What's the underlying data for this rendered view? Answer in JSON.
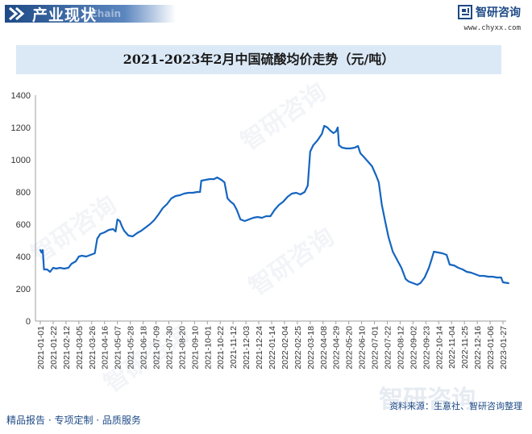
{
  "header": {
    "title": "产业现状",
    "subtitle": "Chain"
  },
  "brand": {
    "name": "智研咨询",
    "url": "www.chyxx.com",
    "logo_icon": "zhiyan-logo-icon"
  },
  "watermark": {
    "text": "智研咨询"
  },
  "footer": {
    "left": "精品报告 · 专项定制 · 品质服务",
    "source": "资料来源：生意社、智研咨询整理"
  },
  "colors": {
    "brand_blue": "#1e4a86",
    "line": "#1565c0",
    "title_bg": "#dbe9f7"
  },
  "chart_data": {
    "type": "line",
    "title": "2021-2023年2月中国硫酸均价走势（元/吨）",
    "xlabel": "",
    "ylabel": "",
    "ylim": [
      0,
      1400
    ],
    "yticks": [
      0,
      200,
      400,
      600,
      800,
      1000,
      1200,
      1400
    ],
    "grid": false,
    "legend": "none",
    "x_ticks": [
      "2021-01-01",
      "2021-01-22",
      "2021-02-12",
      "2021-03-05",
      "2021-03-26",
      "2021-04-16",
      "2021-05-07",
      "2021-05-28",
      "2021-06-18",
      "2021-07-09",
      "2021-07-30",
      "2021-08-20",
      "2021-09-10",
      "2021-10-01",
      "2021-10-22",
      "2021-11-12",
      "2021-12-03",
      "2021-12-24",
      "2022-01-14",
      "2022-02-04",
      "2022-02-25",
      "2022-03-18",
      "2022-04-08",
      "2022-04-29",
      "2022-05-20",
      "2022-06-10",
      "2022-07-01",
      "2022-07-22",
      "2022-08-12",
      "2022-09-02",
      "2022-09-23",
      "2022-10-14",
      "2022-11-04",
      "2022-11-25",
      "2022-12-16",
      "2023-01-06",
      "2023-01-27"
    ],
    "series": [
      {
        "points": [
          [
            "2021-01-01",
            440
          ],
          [
            "2021-01-03",
            425
          ],
          [
            "2021-01-05",
            440
          ],
          [
            "2021-01-07",
            320
          ],
          [
            "2021-01-12",
            320
          ],
          [
            "2021-01-17",
            305
          ],
          [
            "2021-01-22",
            330
          ],
          [
            "2021-01-27",
            325
          ],
          [
            "2021-02-02",
            330
          ],
          [
            "2021-02-09",
            325
          ],
          [
            "2021-02-16",
            330
          ],
          [
            "2021-02-21",
            355
          ],
          [
            "2021-02-28",
            370
          ],
          [
            "2021-03-05",
            400
          ],
          [
            "2021-03-10",
            405
          ],
          [
            "2021-03-17",
            400
          ],
          [
            "2021-03-24",
            410
          ],
          [
            "2021-03-31",
            420
          ],
          [
            "2021-04-04",
            510
          ],
          [
            "2021-04-09",
            540
          ],
          [
            "2021-04-16",
            550
          ],
          [
            "2021-04-23",
            565
          ],
          [
            "2021-04-30",
            570
          ],
          [
            "2021-05-04",
            555
          ],
          [
            "2021-05-07",
            630
          ],
          [
            "2021-05-11",
            620
          ],
          [
            "2021-05-14",
            590
          ],
          [
            "2021-05-18",
            560
          ],
          [
            "2021-05-25",
            530
          ],
          [
            "2021-06-01",
            525
          ],
          [
            "2021-06-08",
            545
          ],
          [
            "2021-06-15",
            560
          ],
          [
            "2021-06-22",
            580
          ],
          [
            "2021-06-29",
            600
          ],
          [
            "2021-07-06",
            625
          ],
          [
            "2021-07-13",
            660
          ],
          [
            "2021-07-20",
            700
          ],
          [
            "2021-07-27",
            725
          ],
          [
            "2021-08-03",
            760
          ],
          [
            "2021-08-10",
            775
          ],
          [
            "2021-08-17",
            780
          ],
          [
            "2021-08-24",
            790
          ],
          [
            "2021-08-31",
            795
          ],
          [
            "2021-09-07",
            795
          ],
          [
            "2021-09-14",
            800
          ],
          [
            "2021-09-19",
            800
          ],
          [
            "2021-09-21",
            870
          ],
          [
            "2021-09-28",
            875
          ],
          [
            "2021-10-05",
            880
          ],
          [
            "2021-10-12",
            880
          ],
          [
            "2021-10-17",
            890
          ],
          [
            "2021-10-24",
            875
          ],
          [
            "2021-10-29",
            860
          ],
          [
            "2021-11-03",
            760
          ],
          [
            "2021-11-08",
            740
          ],
          [
            "2021-11-13",
            725
          ],
          [
            "2021-11-18",
            690
          ],
          [
            "2021-11-24",
            630
          ],
          [
            "2021-12-01",
            620
          ],
          [
            "2021-12-08",
            630
          ],
          [
            "2021-12-15",
            640
          ],
          [
            "2021-12-22",
            645
          ],
          [
            "2021-12-29",
            640
          ],
          [
            "2022-01-05",
            650
          ],
          [
            "2022-01-12",
            650
          ],
          [
            "2022-01-19",
            690
          ],
          [
            "2022-01-26",
            720
          ],
          [
            "2022-02-02",
            740
          ],
          [
            "2022-02-09",
            770
          ],
          [
            "2022-02-16",
            790
          ],
          [
            "2022-02-23",
            795
          ],
          [
            "2022-03-02",
            785
          ],
          [
            "2022-03-09",
            800
          ],
          [
            "2022-03-14",
            840
          ],
          [
            "2022-03-18",
            1050
          ],
          [
            "2022-03-23",
            1090
          ],
          [
            "2022-03-30",
            1120
          ],
          [
            "2022-04-06",
            1160
          ],
          [
            "2022-04-10",
            1210
          ],
          [
            "2022-04-15",
            1200
          ],
          [
            "2022-04-20",
            1180
          ],
          [
            "2022-04-25",
            1165
          ],
          [
            "2022-04-29",
            1175
          ],
          [
            "2022-05-02",
            1200
          ],
          [
            "2022-05-04",
            1090
          ],
          [
            "2022-05-09",
            1075
          ],
          [
            "2022-05-16",
            1070
          ],
          [
            "2022-05-23",
            1070
          ],
          [
            "2022-05-30",
            1075
          ],
          [
            "2022-06-04",
            1085
          ],
          [
            "2022-06-08",
            1040
          ],
          [
            "2022-06-13",
            1020
          ],
          [
            "2022-06-20",
            990
          ],
          [
            "2022-06-27",
            960
          ],
          [
            "2022-07-04",
            900
          ],
          [
            "2022-07-08",
            860
          ],
          [
            "2022-07-13",
            720
          ],
          [
            "2022-07-19",
            610
          ],
          [
            "2022-07-24",
            520
          ],
          [
            "2022-07-31",
            430
          ],
          [
            "2022-08-07",
            380
          ],
          [
            "2022-08-14",
            330
          ],
          [
            "2022-08-21",
            260
          ],
          [
            "2022-08-26",
            245
          ],
          [
            "2022-09-02",
            235
          ],
          [
            "2022-09-09",
            225
          ],
          [
            "2022-09-14",
            235
          ],
          [
            "2022-09-21",
            270
          ],
          [
            "2022-09-28",
            330
          ],
          [
            "2022-10-03",
            390
          ],
          [
            "2022-10-06",
            430
          ],
          [
            "2022-10-13",
            425
          ],
          [
            "2022-10-20",
            420
          ],
          [
            "2022-10-27",
            410
          ],
          [
            "2022-11-01",
            350
          ],
          [
            "2022-11-08",
            345
          ],
          [
            "2022-11-15",
            330
          ],
          [
            "2022-11-22",
            320
          ],
          [
            "2022-11-29",
            305
          ],
          [
            "2022-12-06",
            300
          ],
          [
            "2022-12-13",
            290
          ],
          [
            "2022-12-20",
            280
          ],
          [
            "2022-12-27",
            280
          ],
          [
            "2023-01-03",
            275
          ],
          [
            "2023-01-10",
            275
          ],
          [
            "2023-01-17",
            270
          ],
          [
            "2023-01-24",
            270
          ],
          [
            "2023-01-27",
            240
          ],
          [
            "2023-02-05",
            235
          ]
        ]
      }
    ]
  }
}
